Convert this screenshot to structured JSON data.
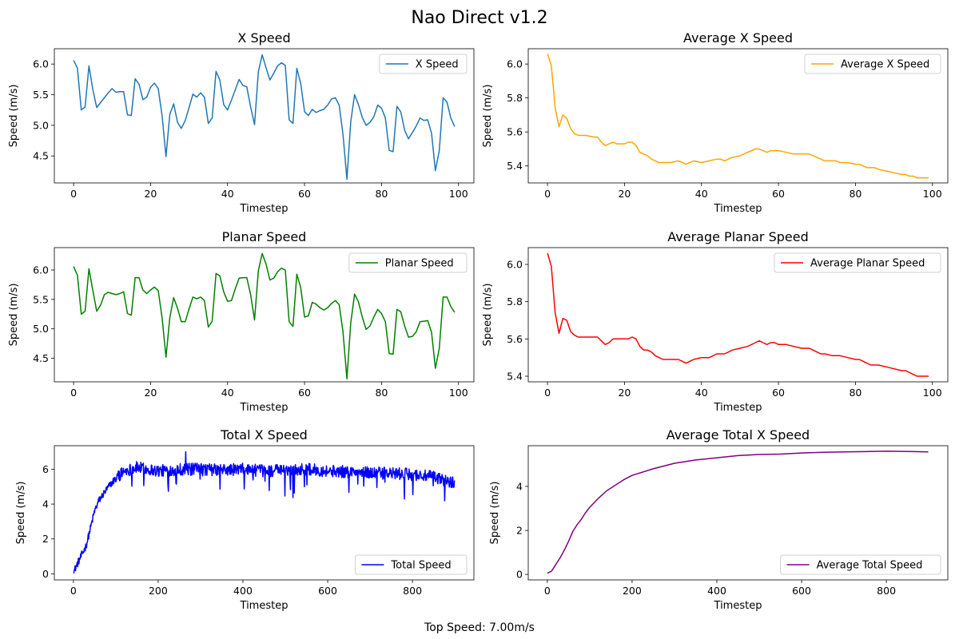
{
  "figure": {
    "title": "Nao Direct v1.2",
    "footer": "Top Speed: 7.00m/s"
  },
  "chart_data": [
    {
      "type": "line",
      "title": "X Speed",
      "xlabel": "Timestep",
      "ylabel": "Speed (m/s)",
      "xlim": [
        -5,
        104
      ],
      "ylim": [
        4.06,
        6.25
      ],
      "xticks": [
        0,
        20,
        40,
        60,
        80,
        100
      ],
      "yticks": [
        4.5,
        5.0,
        5.5,
        6.0
      ],
      "ytick_labels": [
        "4.5",
        "5.0",
        "5.5",
        "6.0"
      ],
      "legend": "top-right",
      "grid": false,
      "series": [
        {
          "name": "X Speed",
          "color": "#1f77b4",
          "x": [
            0,
            1,
            2,
            3,
            4,
            5,
            6,
            7,
            8,
            9,
            10,
            11,
            12,
            13,
            14,
            15,
            16,
            17,
            18,
            19,
            20,
            21,
            22,
            23,
            24,
            25,
            26,
            27,
            28,
            29,
            30,
            31,
            32,
            33,
            34,
            35,
            36,
            37,
            38,
            39,
            40,
            41,
            42,
            43,
            44,
            45,
            46,
            47,
            48,
            49,
            50,
            51,
            52,
            53,
            54,
            55,
            56,
            57,
            58,
            59,
            60,
            61,
            62,
            63,
            64,
            65,
            66,
            67,
            68,
            69,
            70,
            71,
            72,
            73,
            74,
            75,
            76,
            77,
            78,
            79,
            80,
            81,
            82,
            83,
            84,
            85,
            86,
            87,
            88,
            89,
            90,
            91,
            92,
            93,
            94,
            95,
            96,
            97,
            98,
            99
          ],
          "values": [
            6.06,
            5.93,
            5.25,
            5.3,
            5.97,
            5.58,
            5.29,
            5.37,
            5.45,
            5.53,
            5.6,
            5.54,
            5.55,
            5.55,
            5.17,
            5.16,
            5.76,
            5.67,
            5.42,
            5.46,
            5.62,
            5.69,
            5.6,
            5.15,
            4.49,
            5.18,
            5.35,
            5.05,
            4.95,
            5.08,
            5.29,
            5.51,
            5.46,
            5.53,
            5.46,
            5.03,
            5.12,
            5.88,
            5.74,
            5.34,
            5.25,
            5.41,
            5.58,
            5.75,
            5.65,
            5.63,
            5.3,
            5.01,
            5.88,
            6.15,
            5.94,
            5.74,
            5.85,
            5.97,
            6.02,
            5.98,
            5.09,
            5.03,
            5.93,
            5.68,
            5.22,
            5.16,
            5.26,
            5.21,
            5.24,
            5.26,
            5.33,
            5.43,
            5.45,
            5.33,
            4.85,
            4.12,
            5.06,
            5.5,
            5.34,
            5.13,
            5.0,
            5.05,
            5.14,
            5.33,
            5.28,
            5.12,
            4.59,
            4.57,
            5.31,
            5.22,
            4.92,
            4.78,
            4.88,
            4.99,
            5.12,
            5.08,
            5.09,
            4.87,
            4.26,
            4.59,
            5.45,
            5.38,
            5.12,
            4.98
          ]
        }
      ]
    },
    {
      "type": "line",
      "title": "Average X Speed",
      "xlabel": "Timestep",
      "ylabel": "Speed (m/s)",
      "xlim": [
        -5,
        104
      ],
      "ylim": [
        5.3,
        6.09
      ],
      "xticks": [
        0,
        20,
        40,
        60,
        80,
        100
      ],
      "yticks": [
        5.4,
        5.6,
        5.8,
        6.0
      ],
      "ytick_labels": [
        "5.4",
        "5.6",
        "5.8",
        "6.0"
      ],
      "legend": "top-right",
      "grid": false,
      "series": [
        {
          "name": "Average X Speed",
          "color": "#ffa500",
          "x": [
            0,
            1,
            2,
            3,
            4,
            5,
            6,
            7,
            8,
            9,
            10,
            12,
            13,
            14,
            15,
            16,
            17,
            18,
            19,
            20,
            21,
            22,
            23,
            24,
            25,
            26,
            27,
            28,
            29,
            30,
            32,
            34,
            35,
            36,
            37,
            38,
            40,
            42,
            44,
            45,
            46,
            47,
            48,
            50,
            52,
            54,
            55,
            56,
            57,
            58,
            59,
            60,
            62,
            64,
            66,
            68,
            69,
            70,
            71,
            72,
            74,
            75,
            76,
            78,
            80,
            81,
            82,
            83,
            84,
            85,
            86,
            88,
            90,
            92,
            93,
            94,
            95,
            96,
            98,
            99
          ],
          "values": [
            6.06,
            5.99,
            5.74,
            5.63,
            5.7,
            5.68,
            5.62,
            5.59,
            5.58,
            5.58,
            5.58,
            5.57,
            5.57,
            5.54,
            5.52,
            5.53,
            5.54,
            5.53,
            5.53,
            5.53,
            5.54,
            5.54,
            5.52,
            5.48,
            5.47,
            5.46,
            5.44,
            5.43,
            5.42,
            5.42,
            5.42,
            5.43,
            5.42,
            5.41,
            5.42,
            5.43,
            5.42,
            5.43,
            5.44,
            5.44,
            5.43,
            5.44,
            5.45,
            5.46,
            5.48,
            5.5,
            5.5,
            5.49,
            5.48,
            5.49,
            5.49,
            5.49,
            5.48,
            5.47,
            5.47,
            5.47,
            5.46,
            5.45,
            5.44,
            5.43,
            5.43,
            5.43,
            5.42,
            5.42,
            5.41,
            5.41,
            5.4,
            5.39,
            5.39,
            5.39,
            5.38,
            5.37,
            5.36,
            5.35,
            5.35,
            5.34,
            5.34,
            5.33,
            5.33,
            5.33
          ]
        }
      ]
    },
    {
      "type": "line",
      "title": "Planar Speed",
      "xlabel": "Timestep",
      "ylabel": "Speed (m/s)",
      "xlim": [
        -5,
        104
      ],
      "ylim": [
        4.1,
        6.38
      ],
      "xticks": [
        0,
        20,
        40,
        60,
        80,
        100
      ],
      "yticks": [
        4.5,
        5.0,
        5.5,
        6.0
      ],
      "ytick_labels": [
        "4.5",
        "5.0",
        "5.5",
        "6.0"
      ],
      "legend": "top-right",
      "grid": false,
      "series": [
        {
          "name": "Planar Speed",
          "color": "#008000",
          "x": [
            0,
            1,
            2,
            3,
            4,
            5,
            6,
            7,
            8,
            9,
            10,
            11,
            12,
            13,
            14,
            15,
            16,
            17,
            18,
            19,
            20,
            21,
            22,
            23,
            24,
            25,
            26,
            27,
            28,
            29,
            30,
            31,
            32,
            33,
            34,
            35,
            36,
            37,
            38,
            39,
            40,
            41,
            42,
            43,
            44,
            45,
            46,
            47,
            48,
            49,
            50,
            51,
            52,
            53,
            54,
            55,
            56,
            57,
            58,
            59,
            60,
            61,
            62,
            63,
            64,
            65,
            66,
            67,
            68,
            69,
            70,
            71,
            72,
            73,
            74,
            75,
            76,
            77,
            78,
            79,
            80,
            81,
            82,
            83,
            84,
            85,
            86,
            87,
            88,
            89,
            90,
            91,
            92,
            93,
            94,
            95,
            96,
            97,
            98,
            99
          ],
          "values": [
            6.06,
            5.91,
            5.25,
            5.3,
            6.02,
            5.65,
            5.3,
            5.4,
            5.58,
            5.62,
            5.6,
            5.58,
            5.6,
            5.63,
            5.26,
            5.23,
            5.87,
            5.87,
            5.66,
            5.6,
            5.66,
            5.71,
            5.65,
            5.18,
            4.52,
            5.19,
            5.53,
            5.35,
            5.12,
            5.12,
            5.34,
            5.54,
            5.51,
            5.54,
            5.48,
            5.03,
            5.13,
            5.94,
            5.9,
            5.63,
            5.47,
            5.48,
            5.68,
            5.86,
            5.87,
            5.87,
            5.58,
            5.15,
            5.99,
            6.28,
            6.1,
            5.83,
            5.86,
            5.97,
            6.03,
            6.0,
            5.12,
            5.04,
            5.93,
            5.7,
            5.2,
            5.22,
            5.45,
            5.42,
            5.36,
            5.32,
            5.36,
            5.43,
            5.48,
            5.41,
            4.95,
            4.15,
            5.1,
            5.59,
            5.46,
            5.2,
            4.99,
            5.05,
            5.2,
            5.33,
            5.26,
            5.12,
            4.58,
            4.57,
            5.33,
            5.29,
            5.05,
            4.86,
            4.87,
            4.95,
            5.12,
            5.13,
            5.14,
            4.94,
            4.33,
            4.67,
            5.54,
            5.54,
            5.38,
            5.28
          ]
        }
      ]
    },
    {
      "type": "line",
      "title": "Average Planar Speed",
      "xlabel": "Timestep",
      "ylabel": "Speed (m/s)",
      "xlim": [
        -5,
        104
      ],
      "ylim": [
        5.37,
        6.09
      ],
      "xticks": [
        0,
        20,
        40,
        60,
        80,
        100
      ],
      "yticks": [
        5.4,
        5.6,
        5.8,
        6.0
      ],
      "ytick_labels": [
        "5.4",
        "5.6",
        "5.8",
        "6.0"
      ],
      "legend": "top-right",
      "grid": false,
      "series": [
        {
          "name": "Average Planar Speed",
          "color": "#ff0000",
          "x": [
            0,
            1,
            2,
            3,
            4,
            5,
            6,
            7,
            8,
            9,
            10,
            12,
            13,
            14,
            15,
            16,
            17,
            18,
            19,
            20,
            21,
            22,
            23,
            24,
            25,
            26,
            27,
            28,
            29,
            30,
            32,
            34,
            35,
            36,
            37,
            38,
            40,
            42,
            44,
            45,
            46,
            47,
            48,
            50,
            52,
            54,
            55,
            56,
            57,
            58,
            59,
            60,
            62,
            64,
            66,
            68,
            69,
            70,
            71,
            72,
            74,
            75,
            76,
            78,
            80,
            81,
            82,
            83,
            84,
            85,
            86,
            88,
            90,
            92,
            93,
            94,
            95,
            96,
            98,
            99
          ],
          "values": [
            6.06,
            5.99,
            5.74,
            5.63,
            5.71,
            5.7,
            5.64,
            5.62,
            5.61,
            5.61,
            5.61,
            5.61,
            5.61,
            5.59,
            5.57,
            5.58,
            5.6,
            5.6,
            5.6,
            5.6,
            5.6,
            5.61,
            5.6,
            5.56,
            5.54,
            5.54,
            5.53,
            5.51,
            5.5,
            5.49,
            5.49,
            5.49,
            5.48,
            5.47,
            5.48,
            5.49,
            5.5,
            5.5,
            5.52,
            5.52,
            5.52,
            5.53,
            5.54,
            5.55,
            5.56,
            5.58,
            5.59,
            5.58,
            5.57,
            5.58,
            5.58,
            5.57,
            5.57,
            5.56,
            5.55,
            5.55,
            5.54,
            5.53,
            5.52,
            5.52,
            5.51,
            5.51,
            5.51,
            5.5,
            5.49,
            5.49,
            5.48,
            5.47,
            5.46,
            5.46,
            5.46,
            5.45,
            5.44,
            5.43,
            5.43,
            5.42,
            5.41,
            5.4,
            5.4,
            5.4
          ]
        }
      ]
    },
    {
      "type": "line",
      "title": "Total X Speed",
      "xlabel": "Timestep",
      "ylabel": "Speed (m/s)",
      "xlim": [
        -45,
        945
      ],
      "ylim": [
        -0.35,
        7.35
      ],
      "xticks": [
        0,
        200,
        400,
        600,
        800
      ],
      "yticks": [
        0,
        2,
        4,
        6
      ],
      "ytick_labels": [
        "0",
        "2",
        "4",
        "6"
      ],
      "legend": "bottom-right",
      "grid": false,
      "series": [
        {
          "name": "Total Speed",
          "color": "#0000ff",
          "x_start": 0,
          "x_end": 899,
          "noise_amplitude": 0.35,
          "envelope": [
            [
              0,
              0.08
            ],
            [
              10,
              0.6
            ],
            [
              20,
              1.1
            ],
            [
              30,
              1.6
            ],
            [
              40,
              2.6
            ],
            [
              50,
              3.6
            ],
            [
              60,
              4.2
            ],
            [
              80,
              4.9
            ],
            [
              100,
              5.5
            ],
            [
              120,
              5.9
            ],
            [
              150,
              6.1
            ],
            [
              200,
              5.9
            ],
            [
              250,
              6.0
            ],
            [
              300,
              6.0
            ],
            [
              350,
              5.95
            ],
            [
              400,
              6.0
            ],
            [
              450,
              5.9
            ],
            [
              500,
              5.95
            ],
            [
              550,
              6.0
            ],
            [
              600,
              5.9
            ],
            [
              650,
              5.85
            ],
            [
              700,
              5.8
            ],
            [
              750,
              5.75
            ],
            [
              800,
              5.7
            ],
            [
              850,
              5.55
            ],
            [
              899,
              5.2
            ]
          ]
        }
      ]
    },
    {
      "type": "line",
      "title": "Average Total X Speed",
      "xlabel": "Timestep",
      "ylabel": "Speed (m/s)",
      "xlim": [
        -45,
        945
      ],
      "ylim": [
        -0.25,
        5.85
      ],
      "xticks": [
        0,
        200,
        400,
        600,
        800
      ],
      "yticks": [
        0,
        2,
        4
      ],
      "ytick_labels": [
        "0",
        "2",
        "4"
      ],
      "legend": "bottom-right",
      "grid": false,
      "series": [
        {
          "name": "Average Total Speed",
          "color": "#800080",
          "x": [
            0,
            10,
            20,
            30,
            40,
            50,
            60,
            70,
            80,
            90,
            100,
            120,
            140,
            160,
            180,
            200,
            250,
            300,
            350,
            400,
            450,
            500,
            550,
            600,
            650,
            700,
            750,
            800,
            850,
            899
          ],
          "values": [
            0.05,
            0.15,
            0.45,
            0.75,
            1.1,
            1.5,
            1.95,
            2.25,
            2.5,
            2.8,
            3.05,
            3.45,
            3.8,
            4.05,
            4.3,
            4.5,
            4.8,
            5.05,
            5.2,
            5.3,
            5.4,
            5.45,
            5.47,
            5.52,
            5.55,
            5.57,
            5.58,
            5.6,
            5.59,
            5.57
          ]
        }
      ]
    }
  ]
}
